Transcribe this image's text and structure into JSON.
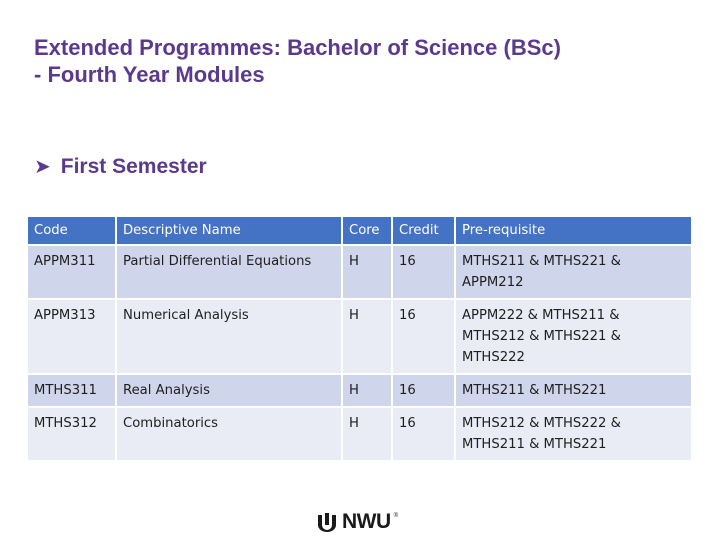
{
  "slide": {
    "title_line1": "Extended Programmes: Bachelor of Science (BSc)",
    "title_line2": "- Fourth Year Modules",
    "bullet_text": "First Semester"
  },
  "table": {
    "headers": [
      "Code",
      "Descriptive Name",
      "Core",
      "Credit",
      "Pre-requisite"
    ],
    "rows": [
      [
        "APPM311",
        "Partial Differential Equations",
        "H",
        "16",
        "MTHS211 & MTHS221 & APPM212"
      ],
      [
        "APPM313",
        "Numerical Analysis",
        "H",
        "16",
        "APPM222 & MTHS211 & MTHS212 & MTHS221 & MTHS222"
      ],
      [
        "MTHS311",
        "Real Analysis",
        "H",
        "16",
        "MTHS211 & MTHS221"
      ],
      [
        "MTHS312",
        "Combinatorics",
        "H",
        "16",
        "MTHS212 & MTHS222 & MTHS211 & MTHS221"
      ]
    ]
  },
  "logo": {
    "text": "NWU",
    "registered": "®",
    "icon": "nwu-logo-icon"
  },
  "colors": {
    "title": "#5b3a8e",
    "header_bg": "#4472c4",
    "row_dark": "#cfd5ea",
    "row_light": "#e9ebf5"
  }
}
